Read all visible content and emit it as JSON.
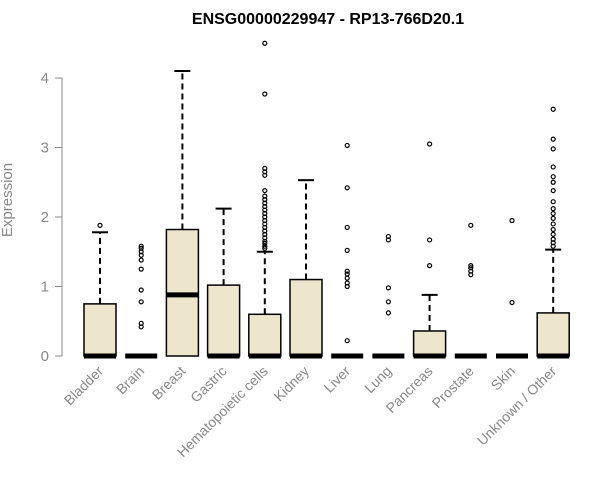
{
  "chart_data": {
    "type": "box",
    "title": "ENSG00000229947 - RP13-766D20.1",
    "ylabel": "Expression",
    "xlabel": "",
    "ylim": [
      0,
      4.55
    ],
    "yticks": [
      0,
      1,
      2,
      3,
      4
    ],
    "box_fill": "#ede6cd",
    "box_stroke": "#000000",
    "categories": [
      "Bladder",
      "Brain",
      "Breast",
      "Gastric",
      "Hematopoietic cells",
      "Kidney",
      "Liver",
      "Lung",
      "Pancreas",
      "Prostate",
      "Skin",
      "Unknown / Other"
    ],
    "boxes": [
      {
        "category": "Bladder",
        "q1": 0,
        "median": 0,
        "q3": 0.75,
        "whisker_low": 0,
        "whisker_high": 1.78,
        "outliers": [
          1.88
        ]
      },
      {
        "category": "Brain",
        "q1": 0,
        "median": 0,
        "q3": 0,
        "whisker_low": 0,
        "whisker_high": 0,
        "outliers": [
          0.42,
          0.47,
          0.78,
          0.95,
          1.25,
          1.38,
          1.45,
          1.5,
          1.55,
          1.58
        ]
      },
      {
        "category": "Breast",
        "q1": 0,
        "median": 0.88,
        "q3": 1.82,
        "whisker_low": 0,
        "whisker_high": 4.1,
        "outliers": []
      },
      {
        "category": "Gastric",
        "q1": 0,
        "median": 0,
        "q3": 1.02,
        "whisker_low": 0,
        "whisker_high": 2.12,
        "outliers": []
      },
      {
        "category": "Hematopoietic cells",
        "q1": 0,
        "median": 0,
        "q3": 0.6,
        "whisker_low": 0,
        "whisker_high": 1.5,
        "outliers": [
          1.55,
          1.58,
          1.62,
          1.65,
          1.7,
          1.75,
          1.8,
          1.85,
          1.9,
          1.95,
          2.0,
          2.05,
          2.1,
          2.15,
          2.2,
          2.25,
          2.3,
          2.38,
          2.6,
          2.65,
          2.7,
          3.77,
          4.5
        ]
      },
      {
        "category": "Kidney",
        "q1": 0,
        "median": 0,
        "q3": 1.1,
        "whisker_low": 0,
        "whisker_high": 2.53,
        "outliers": []
      },
      {
        "category": "Liver",
        "q1": 0,
        "median": 0,
        "q3": 0,
        "whisker_low": 0,
        "whisker_high": 0,
        "outliers": [
          0.22,
          1.0,
          1.05,
          1.12,
          1.18,
          1.22,
          1.52,
          1.85,
          2.42,
          3.03
        ]
      },
      {
        "category": "Lung",
        "q1": 0,
        "median": 0,
        "q3": 0,
        "whisker_low": 0,
        "whisker_high": 0,
        "outliers": [
          0.62,
          0.78,
          0.98,
          1.67,
          1.72
        ]
      },
      {
        "category": "Pancreas",
        "q1": 0,
        "median": 0,
        "q3": 0.36,
        "whisker_low": 0,
        "whisker_high": 0.88,
        "outliers": [
          1.3,
          1.67,
          3.05
        ]
      },
      {
        "category": "Prostate",
        "q1": 0,
        "median": 0,
        "q3": 0,
        "whisker_low": 0,
        "whisker_high": 0,
        "outliers": [
          1.17,
          1.22,
          1.27,
          1.3,
          1.88
        ]
      },
      {
        "category": "Skin",
        "q1": 0,
        "median": 0,
        "q3": 0,
        "whisker_low": 0,
        "whisker_high": 0,
        "outliers": [
          0.77,
          1.95
        ]
      },
      {
        "category": "Unknown / Other",
        "q1": 0,
        "median": 0,
        "q3": 0.62,
        "whisker_low": 0,
        "whisker_high": 1.53,
        "outliers": [
          1.58,
          1.63,
          1.68,
          1.75,
          1.82,
          1.9,
          1.98,
          2.05,
          2.12,
          2.22,
          2.38,
          2.5,
          2.58,
          2.72,
          2.98,
          3.12,
          3.55
        ]
      }
    ]
  }
}
